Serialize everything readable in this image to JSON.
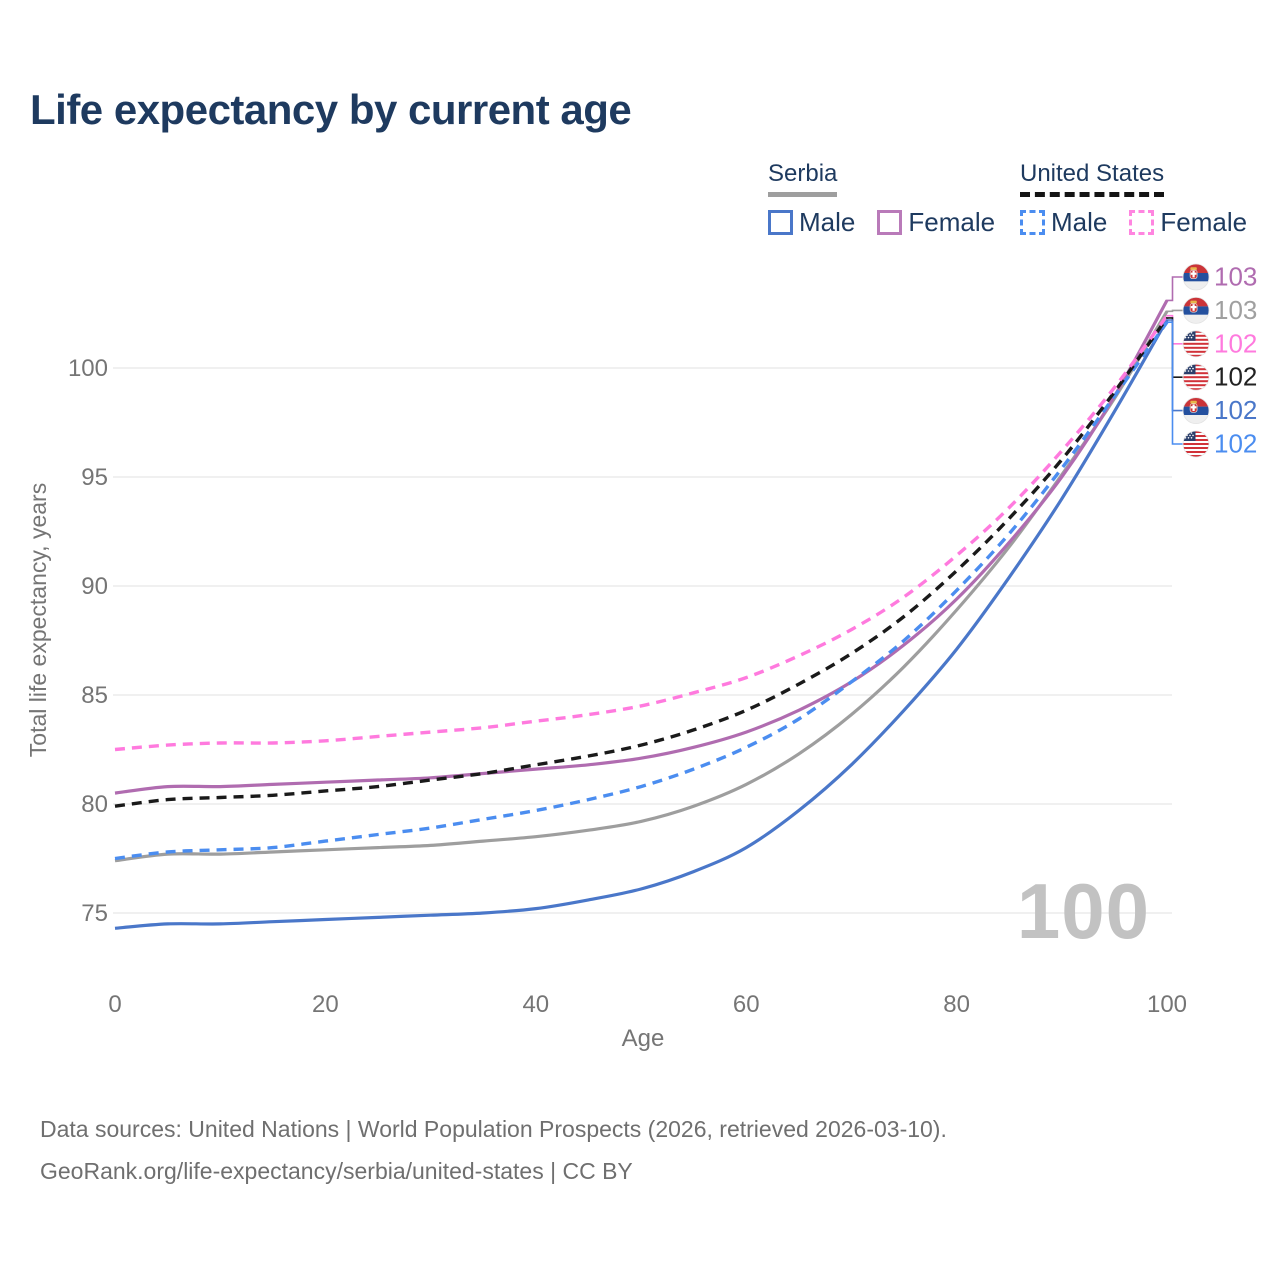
{
  "title": "Life expectancy by current age",
  "legend": {
    "serbia": {
      "title": "Serbia",
      "male": "Male",
      "female": "Female"
    },
    "united_states": {
      "title": "United States",
      "male": "Male",
      "female": "Female"
    }
  },
  "watermark_age": "100",
  "footer": {
    "line1": "Data sources: United Nations | World Population Prospects (2026, retrieved 2026-03-10).",
    "line2": "GeoRank.org/life-expectancy/serbia/united-states | CC BY"
  },
  "chart_data": {
    "type": "line",
    "title": "Life expectancy by current age",
    "xlabel": "Age",
    "ylabel": "Total life expectancy, years",
    "xlim": [
      0,
      100
    ],
    "ylim": [
      73.5,
      103.5
    ],
    "x_ticks": [
      0,
      20,
      40,
      60,
      80,
      100
    ],
    "y_ticks": [
      75,
      80,
      85,
      90,
      95,
      100
    ],
    "grid": "horizontal-only",
    "legend_position": "top-right",
    "x": [
      0,
      5,
      10,
      15,
      20,
      25,
      30,
      35,
      40,
      45,
      50,
      55,
      60,
      65,
      70,
      75,
      80,
      85,
      90,
      95,
      100
    ],
    "series": [
      {
        "key": "srb_t",
        "name": "Serbia (total)",
        "flag": "rs",
        "style": "solid",
        "color": "#9e9e9e",
        "end_label": "103",
        "label_color": "#a0a0a0",
        "values": [
          77.4,
          77.7,
          77.7,
          77.8,
          77.9,
          78.0,
          78.1,
          78.3,
          78.5,
          78.8,
          79.2,
          79.9,
          80.9,
          82.3,
          84.1,
          86.3,
          88.9,
          91.8,
          95.1,
          98.6,
          102.6
        ]
      },
      {
        "key": "srb_m",
        "name": "Serbia Male",
        "flag": "rs",
        "style": "solid",
        "color": "#4a77c9",
        "end_label": "102",
        "label_color": "#4a77c9",
        "values": [
          74.3,
          74.5,
          74.5,
          74.6,
          74.7,
          74.8,
          74.9,
          75.0,
          75.2,
          75.6,
          76.1,
          76.9,
          78.0,
          79.7,
          81.8,
          84.3,
          87.1,
          90.4,
          94.0,
          98.0,
          102.2
        ]
      },
      {
        "key": "srb_f",
        "name": "Serbia Female",
        "flag": "rs",
        "style": "solid",
        "color": "#b06cb0",
        "end_label": "103",
        "label_color": "#b06cb0",
        "values": [
          80.5,
          80.8,
          80.8,
          80.9,
          81.0,
          81.1,
          81.2,
          81.4,
          81.6,
          81.8,
          82.1,
          82.6,
          83.3,
          84.3,
          85.6,
          87.3,
          89.4,
          92.0,
          95.0,
          98.7,
          103.1
        ]
      },
      {
        "key": "us_m",
        "name": "United States Male",
        "flag": "us",
        "style": "dashed",
        "color": "#4b8df0",
        "end_label": "102",
        "label_color": "#4b8df0",
        "values": [
          77.5,
          77.8,
          77.9,
          78.0,
          78.3,
          78.6,
          78.9,
          79.3,
          79.7,
          80.2,
          80.8,
          81.6,
          82.6,
          83.9,
          85.6,
          87.5,
          89.8,
          92.4,
          95.4,
          98.7,
          102.1
        ]
      },
      {
        "key": "us_t",
        "name": "United States (total)",
        "flag": "us",
        "style": "dashed",
        "color": "#1a1a1a",
        "end_label": "102",
        "label_color": "#222222",
        "values": [
          79.9,
          80.2,
          80.3,
          80.4,
          80.6,
          80.8,
          81.1,
          81.4,
          81.8,
          82.2,
          82.7,
          83.4,
          84.3,
          85.5,
          86.9,
          88.6,
          90.7,
          93.1,
          95.8,
          98.9,
          102.3
        ]
      },
      {
        "key": "us_f",
        "name": "United States Female",
        "flag": "us",
        "style": "dashed",
        "color": "#ff7ade",
        "end_label": "102",
        "label_color": "#ff7ade",
        "values": [
          82.5,
          82.7,
          82.8,
          82.8,
          82.9,
          83.1,
          83.3,
          83.5,
          83.8,
          84.1,
          84.5,
          85.1,
          85.8,
          86.8,
          88.0,
          89.5,
          91.4,
          93.6,
          96.2,
          99.1,
          102.4
        ]
      }
    ],
    "end_label_order": [
      "srb_f",
      "srb_t",
      "us_f",
      "us_t",
      "srb_m",
      "us_m"
    ]
  }
}
